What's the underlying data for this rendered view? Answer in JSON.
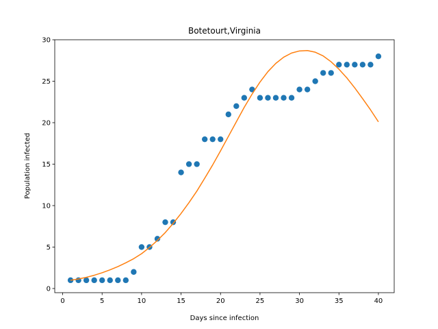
{
  "chart_data": {
    "type": "scatter",
    "title": "Botetourt,Virginia",
    "xlabel": "Days since infection",
    "ylabel": "Population infected",
    "xlim": [
      -1,
      42
    ],
    "ylim": [
      -0.5,
      30
    ],
    "xticks": [
      0,
      5,
      10,
      15,
      20,
      25,
      30,
      35,
      40
    ],
    "yticks": [
      0,
      5,
      10,
      15,
      20,
      25,
      30
    ],
    "grid": false,
    "series": [
      {
        "kind": "scatter",
        "color": "#1f77b4",
        "x": [
          1,
          2,
          3,
          4,
          5,
          6,
          7,
          8,
          9,
          10,
          11,
          12,
          13,
          14,
          15,
          16,
          17,
          18,
          19,
          20,
          21,
          22,
          23,
          24,
          25,
          26,
          27,
          28,
          29,
          30,
          31,
          32,
          33,
          34,
          35,
          36,
          37,
          38,
          39,
          40
        ],
        "y": [
          1,
          1,
          1,
          1,
          1,
          1,
          1,
          1,
          2,
          5,
          5,
          6,
          8,
          8,
          14,
          15,
          15,
          18,
          18,
          18,
          21,
          22,
          23,
          24,
          23,
          23,
          23,
          23,
          23,
          24,
          24,
          25,
          26,
          26,
          27,
          27,
          27,
          27,
          27,
          28
        ]
      },
      {
        "kind": "line",
        "color": "#ff7f0e",
        "x": [
          1,
          2,
          3,
          4,
          5,
          6,
          7,
          8,
          9,
          10,
          11,
          12,
          13,
          14,
          15,
          16,
          17,
          18,
          19,
          20,
          21,
          22,
          23,
          24,
          25,
          26,
          27,
          28,
          29,
          30,
          31,
          32,
          33,
          34,
          35,
          36,
          37,
          38,
          39,
          40
        ],
        "y": [
          1.0,
          1.15,
          1.35,
          1.6,
          1.9,
          2.25,
          2.65,
          3.1,
          3.6,
          4.2,
          4.95,
          5.8,
          6.75,
          7.85,
          9.05,
          10.35,
          11.75,
          13.3,
          14.9,
          16.6,
          18.35,
          20.1,
          21.85,
          23.45,
          24.9,
          26.15,
          27.15,
          27.9,
          28.4,
          28.65,
          28.7,
          28.5,
          28.05,
          27.35,
          26.45,
          25.4,
          24.2,
          22.9,
          21.55,
          20.1
        ]
      }
    ]
  }
}
